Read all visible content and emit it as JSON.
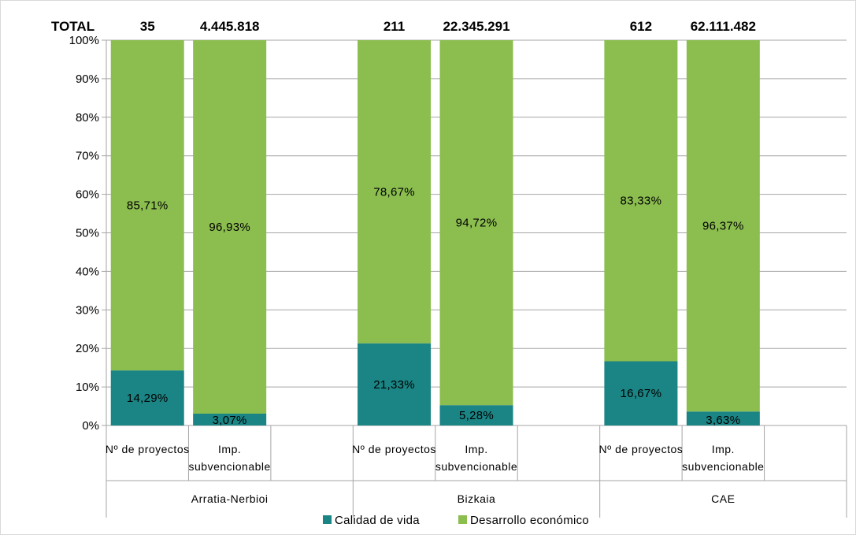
{
  "chart_data": {
    "type": "bar",
    "stacked": true,
    "percent_stacked": true,
    "total_label": "TOTAL",
    "yticks": [
      "0%",
      "10%",
      "20%",
      "30%",
      "40%",
      "50%",
      "60%",
      "70%",
      "80%",
      "90%",
      "100%"
    ],
    "ylim": [
      0,
      100
    ],
    "grid": true,
    "legend_position": "bottom",
    "groups": [
      {
        "name": "Arratia-Nerbioi",
        "bars": [
          {
            "category": "Nº de proyectos",
            "total": "35",
            "values": [
              14.29,
              85.71
            ],
            "labels": [
              "14,29%",
              "85,71%"
            ]
          },
          {
            "category": "Imp. subvencionable",
            "total": "4.445.818",
            "values": [
              3.07,
              96.93
            ],
            "labels": [
              "3,07%",
              "96,93%"
            ]
          }
        ]
      },
      {
        "name": "Bizkaia",
        "bars": [
          {
            "category": "Nº de proyectos",
            "total": "211",
            "values": [
              21.33,
              78.67
            ],
            "labels": [
              "21,33%",
              "78,67%"
            ]
          },
          {
            "category": "Imp. subvencionable",
            "total": "22.345.291",
            "values": [
              5.28,
              94.72
            ],
            "labels": [
              "5,28%",
              "94,72%"
            ]
          }
        ]
      },
      {
        "name": "CAE",
        "bars": [
          {
            "category": "Nº de proyectos",
            "total": "612",
            "values": [
              16.67,
              83.33
            ],
            "labels": [
              "16,67%",
              "83,33%"
            ]
          },
          {
            "category": "Imp. subvencionable",
            "total": "62.111.482",
            "values": [
              3.63,
              96.37
            ],
            "labels": [
              "3,63%",
              "96,37%"
            ]
          }
        ]
      }
    ],
    "series": [
      {
        "name": "Calidad de vida",
        "color": "#1b8484"
      },
      {
        "name": "Desarrollo económico",
        "color": "#8bbd4f"
      }
    ]
  }
}
